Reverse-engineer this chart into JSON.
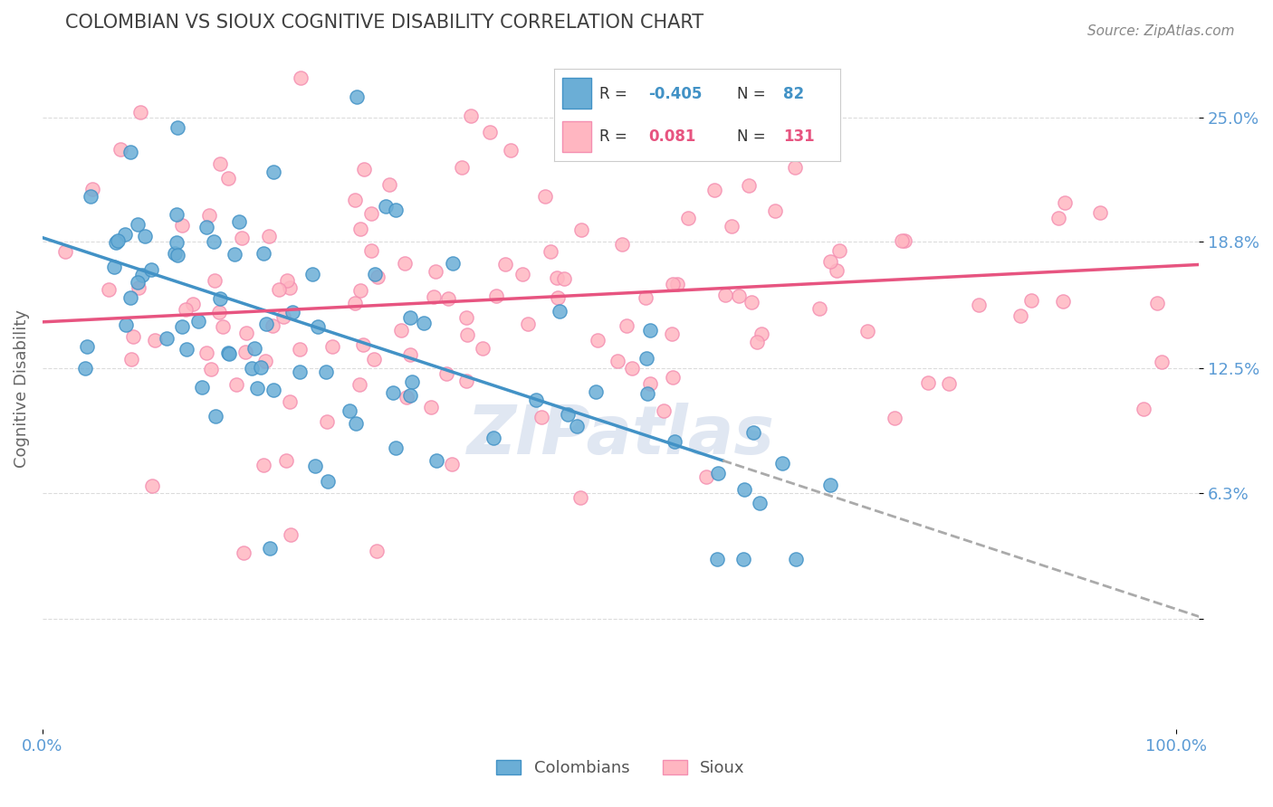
{
  "title": "COLOMBIAN VS SIOUX COGNITIVE DISABILITY CORRELATION CHART",
  "source": "Source: ZipAtlas.com",
  "ylabel": "Cognitive Disability",
  "colombian_color": "#6baed6",
  "colombian_edge": "#4292c6",
  "sioux_color": "#ffb6c1",
  "sioux_edge": "#f48fb1",
  "colombian_R": -0.405,
  "colombian_N": 82,
  "sioux_R": 0.081,
  "sioux_N": 131,
  "background_color": "#ffffff",
  "grid_color": "#cccccc",
  "title_color": "#404040",
  "axis_label_color": "#5b9bd5"
}
